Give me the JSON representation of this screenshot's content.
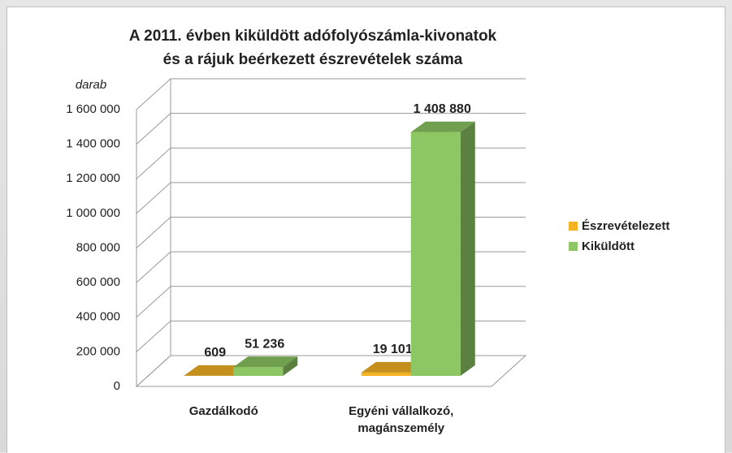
{
  "chart_data": {
    "type": "bar3d",
    "title": "A 2011. évben kiküldött adófolyószámla-kivonatok",
    "subtitle": "és a rájuk beérkezett észrevételek száma",
    "y_label": "darab",
    "categories": [
      "Gazdálkodó",
      "Egyéni vállalkozó, magánszemély"
    ],
    "series": [
      {
        "name": "Észrevételezett",
        "color": "#f5b324",
        "values": [
          609,
          19101
        ],
        "value_labels": [
          "609",
          "19 101"
        ]
      },
      {
        "name": "Kiküldött",
        "color": "#8cc763",
        "values": [
          51236,
          1408880
        ],
        "value_labels": [
          "51 236",
          "1 408 880"
        ]
      }
    ],
    "ylim": [
      0,
      1600000
    ],
    "yticks": [
      0,
      {
        "value": 200000,
        "label": "200 000"
      },
      {
        "value": 400000,
        "label": "400 000"
      },
      {
        "value": 600000,
        "label": "600 000"
      },
      {
        "value": 800000,
        "label": "800 000"
      },
      {
        "value": 1000000,
        "label": "1 000 000"
      },
      {
        "value": 1200000,
        "label": "1 200 000"
      },
      {
        "value": 1400000,
        "label": "1 400 000"
      },
      {
        "value": 1600000,
        "label": "1 600 000"
      }
    ],
    "grid": true,
    "legend": "right"
  }
}
